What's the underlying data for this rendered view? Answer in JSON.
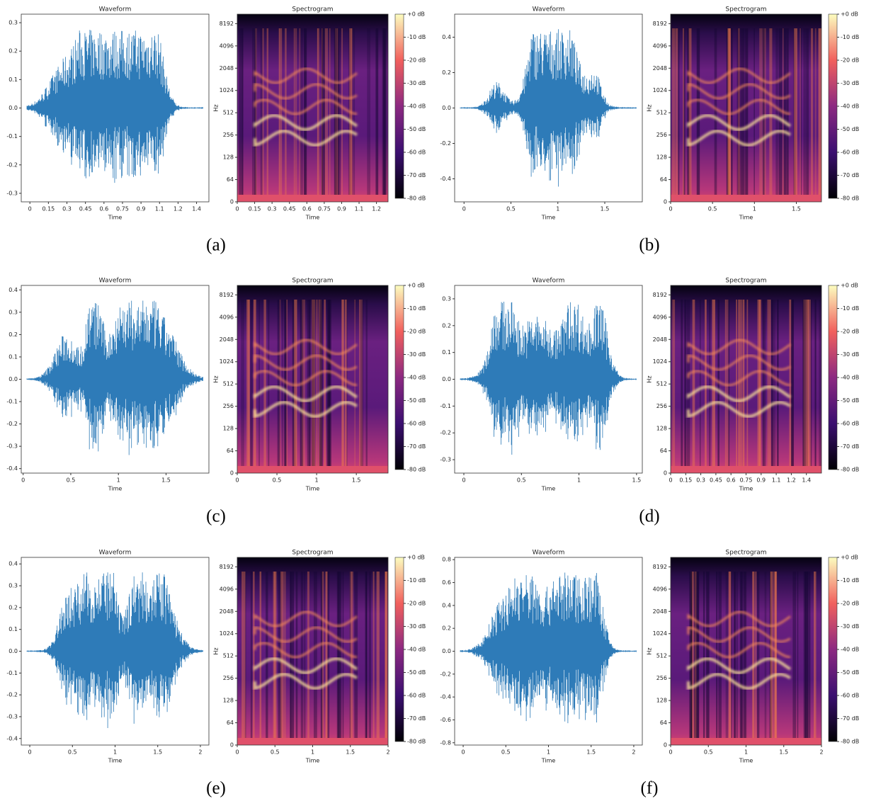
{
  "panels": [
    {
      "caption": "(a)",
      "waveform": {
        "title": "Waveform",
        "xlabel": "Time",
        "xlim": [
          -0.07,
          1.45
        ],
        "ylim": [
          -0.33,
          0.33
        ],
        "xticks": [
          0,
          0.15,
          0.3,
          0.45,
          0.6,
          0.75,
          0.9,
          {
            "value": 1.05,
            "label": "1.1"
          },
          1.2,
          {
            "value": 1.35,
            "label": "1.4"
          }
        ],
        "yticks": [
          0.3,
          0.2,
          0.1,
          {
            "value": 0,
            "label": "0.0"
          },
          -0.1,
          -0.2,
          -0.3
        ]
      },
      "spectrogram": {
        "title": "Spectrogram",
        "xlabel": "Time",
        "ylabel": "Hz",
        "xlim": [
          0,
          1.3
        ],
        "ylim": [
          0,
          11000
        ],
        "yscale": "symlog",
        "xticks": [
          0,
          0.15,
          0.3,
          0.45,
          0.6,
          0.75,
          0.9,
          {
            "value": 1.05,
            "label": "1.1"
          },
          1.2
        ],
        "yticks": [
          0,
          64,
          128,
          256,
          512,
          1024,
          2048,
          4096,
          8192
        ],
        "colorbar": {
          "lim": [
            -80,
            0
          ],
          "ticks": [
            {
              "value": 0,
              "label": "+0 dB"
            },
            {
              "value": -10,
              "label": "-10 dB"
            },
            {
              "value": -20,
              "label": "-20 dB"
            },
            {
              "value": -30,
              "label": "-30 dB"
            },
            {
              "value": -40,
              "label": "-40 dB"
            },
            {
              "value": -50,
              "label": "-50 dB"
            },
            {
              "value": -60,
              "label": "-60 dB"
            },
            {
              "value": -70,
              "label": "-70 dB"
            },
            {
              "value": -80,
              "label": "-80 dB"
            }
          ]
        }
      }
    },
    {
      "caption": "(b)",
      "waveform": {
        "title": "Waveform",
        "xlabel": "Time",
        "xlim": [
          -0.1,
          1.9
        ],
        "ylim": [
          -0.53,
          0.53
        ],
        "xticks": [
          0,
          0.5,
          1,
          1.5
        ],
        "yticks": [
          0.4,
          0.2,
          {
            "value": 0,
            "label": "0.0"
          },
          -0.2,
          -0.4
        ]
      },
      "spectrogram": {
        "title": "Spectrogram",
        "xlabel": "Time",
        "ylabel": "Hz",
        "xlim": [
          0,
          1.8
        ],
        "ylim": [
          0,
          11000
        ],
        "yscale": "symlog",
        "xticks": [
          0,
          0.5,
          1,
          1.5
        ],
        "yticks": [
          0,
          64,
          128,
          256,
          512,
          1024,
          2048,
          4096,
          8192
        ],
        "colorbar": {
          "lim": [
            -80,
            0
          ],
          "ticks": [
            {
              "value": 0,
              "label": "+0 dB"
            },
            {
              "value": -10,
              "label": "-10 dB"
            },
            {
              "value": -20,
              "label": "-20 dB"
            },
            {
              "value": -30,
              "label": "-30 dB"
            },
            {
              "value": -40,
              "label": "-40 dB"
            },
            {
              "value": -50,
              "label": "-50 dB"
            },
            {
              "value": -60,
              "label": "-60 dB"
            },
            {
              "value": -70,
              "label": "-70 dB"
            },
            {
              "value": -80,
              "label": "-80 dB"
            }
          ]
        }
      }
    },
    {
      "caption": "(c)",
      "waveform": {
        "title": "Waveform",
        "xlabel": "Time",
        "xlim": [
          -0.02,
          1.95
        ],
        "ylim": [
          -0.42,
          0.42
        ],
        "xticks": [
          0,
          0.5,
          1,
          1.5
        ],
        "yticks": [
          0.4,
          0.3,
          0.2,
          0.1,
          {
            "value": 0,
            "label": "0.0"
          },
          -0.1,
          -0.2,
          -0.3,
          -0.4
        ]
      },
      "spectrogram": {
        "title": "Spectrogram",
        "xlabel": "Time",
        "ylabel": "Hz",
        "xlim": [
          0,
          1.9
        ],
        "ylim": [
          0,
          11000
        ],
        "yscale": "symlog",
        "xticks": [
          0,
          0.5,
          1,
          1.5
        ],
        "yticks": [
          0,
          64,
          128,
          256,
          512,
          1024,
          2048,
          4096,
          8192
        ],
        "colorbar": {
          "lim": [
            -80,
            0
          ],
          "ticks": [
            {
              "value": 0,
              "label": "+0 dB"
            },
            {
              "value": -10,
              "label": "-10 dB"
            },
            {
              "value": -20,
              "label": "-20 dB"
            },
            {
              "value": -30,
              "label": "-30 dB"
            },
            {
              "value": -40,
              "label": "-40 dB"
            },
            {
              "value": -50,
              "label": "-50 dB"
            },
            {
              "value": -60,
              "label": "-60 dB"
            },
            {
              "value": -70,
              "label": "-70 dB"
            },
            {
              "value": -80,
              "label": "-80 dB"
            }
          ]
        }
      }
    },
    {
      "caption": "(d)",
      "waveform": {
        "title": "Waveform",
        "xlabel": "Time",
        "xlim": [
          -0.08,
          1.55
        ],
        "ylim": [
          -0.35,
          0.35
        ],
        "xticks": [
          0,
          0.5,
          1,
          1.5
        ],
        "yticks": [
          0.3,
          0.2,
          0.1,
          {
            "value": 0,
            "label": "0.0"
          },
          -0.1,
          -0.2,
          -0.3
        ]
      },
      "spectrogram": {
        "title": "Spectrogram",
        "xlabel": "Time",
        "ylabel": "Hz",
        "xlim": [
          0,
          1.5
        ],
        "ylim": [
          0,
          11000
        ],
        "yscale": "symlog",
        "xticks": [
          0,
          0.15,
          0.3,
          0.45,
          0.6,
          0.75,
          0.9,
          {
            "value": 1.05,
            "label": "1.1"
          },
          1.2,
          {
            "value": 1.35,
            "label": "1.4"
          }
        ],
        "yticks": [
          0,
          64,
          128,
          256,
          512,
          1024,
          2048,
          4096,
          8192
        ],
        "colorbar": {
          "lim": [
            -80,
            0
          ],
          "ticks": [
            {
              "value": 0,
              "label": "+0 dB"
            },
            {
              "value": -10,
              "label": "-10 dB"
            },
            {
              "value": -20,
              "label": "-20 dB"
            },
            {
              "value": -30,
              "label": "-30 dB"
            },
            {
              "value": -40,
              "label": "-40 dB"
            },
            {
              "value": -50,
              "label": "-50 dB"
            },
            {
              "value": -60,
              "label": "-60 dB"
            },
            {
              "value": -70,
              "label": "-70 dB"
            },
            {
              "value": -80,
              "label": "-80 dB"
            }
          ]
        }
      }
    },
    {
      "caption": "(e)",
      "waveform": {
        "title": "Waveform",
        "xlabel": "Time",
        "xlim": [
          -0.1,
          2.1
        ],
        "ylim": [
          -0.43,
          0.43
        ],
        "xticks": [
          0,
          0.5,
          1,
          1.5,
          2
        ],
        "yticks": [
          0.4,
          0.3,
          0.2,
          0.1,
          {
            "value": 0,
            "label": "0.0"
          },
          -0.1,
          -0.2,
          -0.3,
          -0.4
        ]
      },
      "spectrogram": {
        "title": "Spectrogram",
        "xlabel": "Time",
        "ylabel": "Hz",
        "xlim": [
          0,
          2
        ],
        "ylim": [
          0,
          11000
        ],
        "yscale": "symlog",
        "xticks": [
          0,
          0.5,
          1,
          1.5,
          2
        ],
        "yticks": [
          0,
          64,
          128,
          256,
          512,
          1024,
          2048,
          4096,
          8192
        ],
        "colorbar": {
          "lim": [
            -80,
            0
          ],
          "ticks": [
            {
              "value": 0,
              "label": "+0 dB"
            },
            {
              "value": -10,
              "label": "-10 dB"
            },
            {
              "value": -20,
              "label": "-20 dB"
            },
            {
              "value": -30,
              "label": "-30 dB"
            },
            {
              "value": -40,
              "label": "-40 dB"
            },
            {
              "value": -50,
              "label": "-50 dB"
            },
            {
              "value": -60,
              "label": "-60 dB"
            },
            {
              "value": -70,
              "label": "-70 dB"
            },
            {
              "value": -80,
              "label": "-80 dB"
            }
          ]
        }
      }
    },
    {
      "caption": "(f)",
      "waveform": {
        "title": "Waveform",
        "xlabel": "Time",
        "xlim": [
          -0.1,
          2.1
        ],
        "ylim": [
          -0.82,
          0.82
        ],
        "xticks": [
          0,
          0.5,
          1,
          1.5,
          2
        ],
        "yticks": [
          0.8,
          0.6,
          0.4,
          0.2,
          {
            "value": 0,
            "label": "0.0"
          },
          -0.2,
          -0.4,
          -0.6,
          -0.8
        ]
      },
      "spectrogram": {
        "title": "Spectrogram",
        "xlabel": "Time",
        "ylabel": "Hz",
        "xlim": [
          0,
          2
        ],
        "ylim": [
          0,
          11000
        ],
        "yscale": "symlog",
        "xticks": [
          0,
          0.5,
          1,
          1.5,
          2
        ],
        "yticks": [
          0,
          64,
          128,
          256,
          512,
          1024,
          2048,
          4096,
          8192
        ],
        "colorbar": {
          "lim": [
            -80,
            0
          ],
          "ticks": [
            {
              "value": 0,
              "label": "+0 dB"
            },
            {
              "value": -10,
              "label": "-10 dB"
            },
            {
              "value": -20,
              "label": "-20 dB"
            },
            {
              "value": -30,
              "label": "-30 dB"
            },
            {
              "value": -40,
              "label": "-40 dB"
            },
            {
              "value": -50,
              "label": "-50 dB"
            },
            {
              "value": -60,
              "label": "-60 dB"
            },
            {
              "value": -70,
              "label": "-70 dB"
            },
            {
              "value": -80,
              "label": "-80 dB"
            }
          ]
        }
      }
    }
  ]
}
